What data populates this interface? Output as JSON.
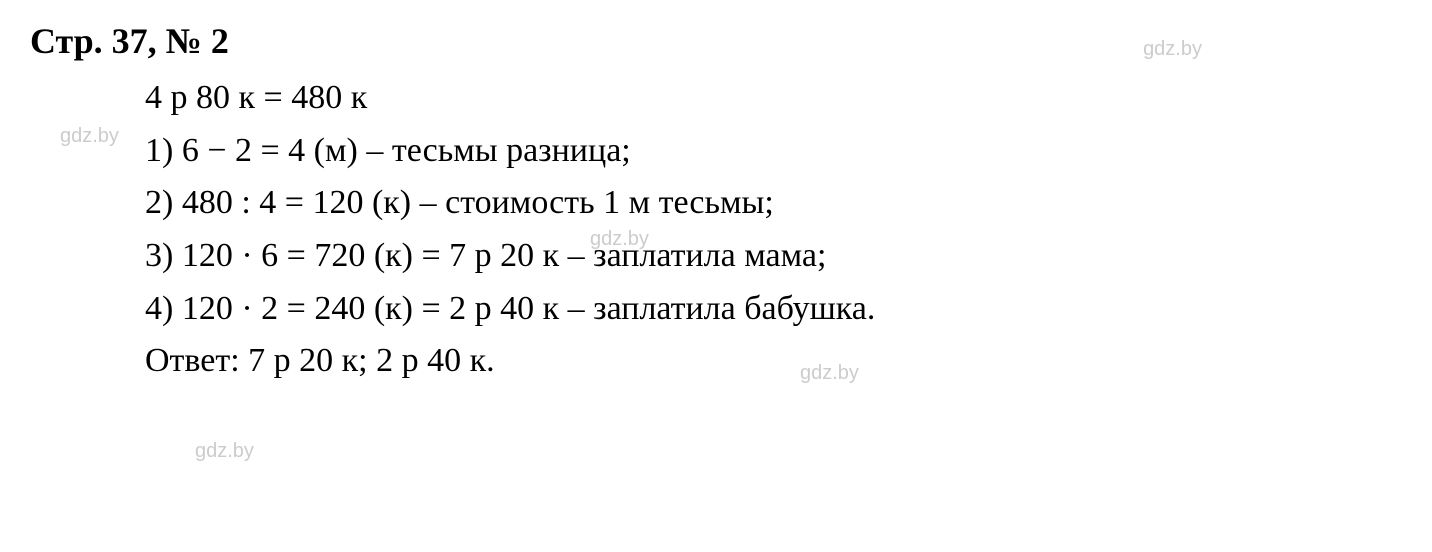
{
  "heading": "Стр. 37, № 2",
  "lines": {
    "conversion": "4 р 80 к = 480 к",
    "step1": "1) 6 − 2 = 4 (м) – тесьмы разница;",
    "step2": "2) 480 : 4 = 120 (к) – стоимость 1 м тесьмы;",
    "step3": "3) 120 · 6 = 720 (к) = 7 р 20 к – заплатила мама;",
    "step4": "4) 120 · 2 = 240 (к) = 2 р 40 к – заплатила бабушка.",
    "answer": "Ответ: 7 р 20 к; 2 р 40 к."
  },
  "watermark_text": "gdz.by",
  "style": {
    "heading_fontsize": 36,
    "heading_fontweight": "bold",
    "body_fontsize": 34,
    "text_color": "#000000",
    "background_color": "#ffffff",
    "watermark_color": "#cccccc",
    "watermark_fontsize": 20,
    "font_family": "Times New Roman"
  }
}
